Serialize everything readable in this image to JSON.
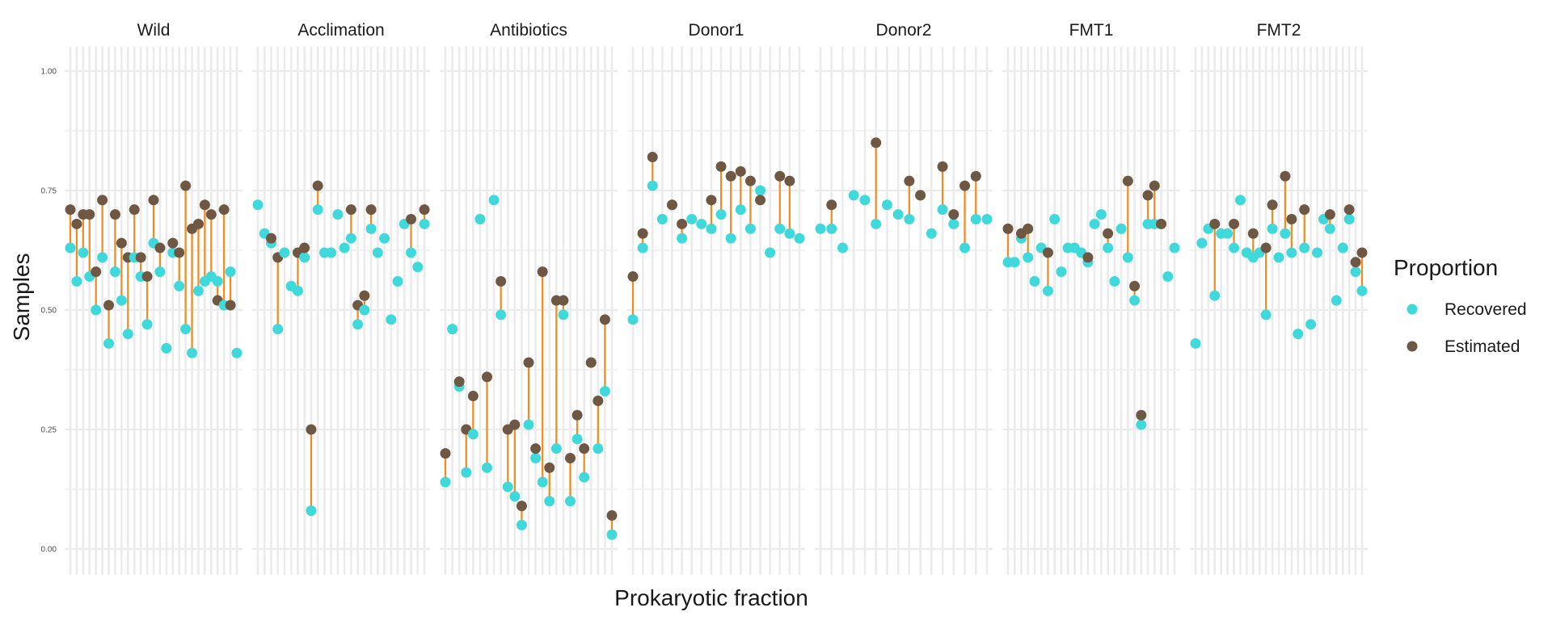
{
  "chart_data": {
    "type": "scatter",
    "xlabel": "Prokaryotic fraction",
    "ylabel": "Samples",
    "ylim": [
      0,
      1.0
    ],
    "y_ticks": [
      0.0,
      0.25,
      0.5,
      0.75,
      1.0
    ],
    "y_tick_labels": [
      "0.00",
      "0.25",
      "0.50",
      "0.75",
      "1.00"
    ],
    "grid": true,
    "legend": {
      "title": "Proportion",
      "position": "right",
      "entries": [
        {
          "label": "Recovered",
          "color": "#40D9DB"
        },
        {
          "label": "Estimated",
          "color": "#6E5843"
        }
      ]
    },
    "segment_color": "#F28C1E",
    "facets": [
      {
        "name": "Wild",
        "recovered": [
          0.63,
          0.56,
          0.62,
          0.57,
          0.5,
          0.61,
          0.43,
          0.58,
          0.52,
          0.45,
          0.61,
          0.57,
          0.47,
          0.64,
          0.58,
          0.42,
          0.62,
          0.55,
          0.46,
          0.41,
          0.54,
          0.56,
          0.57,
          0.56,
          0.51,
          0.58,
          0.41
        ],
        "estimated": [
          0.71,
          0.68,
          0.7,
          0.7,
          0.58,
          0.73,
          0.51,
          0.7,
          0.64,
          0.61,
          0.71,
          0.61,
          0.57,
          0.73,
          0.63,
          null,
          0.64,
          0.62,
          0.76,
          0.67,
          0.68,
          0.72,
          0.7,
          0.52,
          0.71,
          0.51,
          null
        ]
      },
      {
        "name": "Acclimation",
        "recovered": [
          0.72,
          0.66,
          0.64,
          0.46,
          0.62,
          0.55,
          0.54,
          0.61,
          0.08,
          0.71,
          0.62,
          0.62,
          0.7,
          0.63,
          0.65,
          0.47,
          0.5,
          0.67,
          0.62,
          0.65,
          0.48,
          0.56,
          0.68,
          0.62,
          0.59,
          0.68
        ],
        "estimated": [
          null,
          null,
          0.65,
          0.61,
          null,
          null,
          0.62,
          0.63,
          0.25,
          0.76,
          null,
          null,
          null,
          null,
          0.71,
          0.51,
          0.53,
          0.71,
          null,
          null,
          null,
          null,
          null,
          0.69,
          null,
          0.71
        ]
      },
      {
        "name": "Antibiotics",
        "recovered": [
          0.14,
          0.46,
          0.34,
          0.16,
          0.24,
          0.69,
          0.17,
          0.73,
          0.49,
          0.13,
          0.11,
          0.05,
          0.26,
          0.19,
          0.14,
          0.1,
          0.21,
          0.49,
          0.1,
          0.23,
          0.15,
          0.39,
          0.21,
          0.33,
          0.03
        ],
        "estimated": [
          0.2,
          null,
          0.35,
          0.25,
          0.32,
          null,
          0.36,
          null,
          0.56,
          0.25,
          0.26,
          0.09,
          0.39,
          0.21,
          0.58,
          0.17,
          0.52,
          0.52,
          0.19,
          0.28,
          0.21,
          0.39,
          0.31,
          0.48,
          0.07
        ]
      },
      {
        "name": "Donor1",
        "recovered": [
          0.48,
          0.63,
          0.76,
          0.69,
          0.72,
          0.65,
          0.69,
          0.68,
          0.67,
          0.7,
          0.65,
          0.71,
          0.67,
          0.75,
          0.62,
          0.67,
          0.66,
          0.65
        ],
        "estimated": [
          0.57,
          0.66,
          0.82,
          null,
          0.72,
          0.68,
          null,
          null,
          0.73,
          0.8,
          0.78,
          0.79,
          0.77,
          0.73,
          null,
          0.78,
          0.77,
          null
        ]
      },
      {
        "name": "Donor2",
        "recovered": [
          0.67,
          0.67,
          0.63,
          0.74,
          0.73,
          0.68,
          0.72,
          0.7,
          0.69,
          0.74,
          0.66,
          0.71,
          0.68,
          0.63,
          0.69,
          0.69
        ],
        "estimated": [
          null,
          0.72,
          null,
          null,
          null,
          0.85,
          null,
          null,
          0.77,
          0.74,
          null,
          0.8,
          0.7,
          0.76,
          0.78,
          null
        ]
      },
      {
        "name": "FMT1",
        "recovered": [
          0.6,
          0.6,
          0.65,
          0.61,
          0.56,
          0.63,
          0.54,
          0.69,
          0.58,
          0.63,
          0.63,
          0.62,
          0.6,
          0.68,
          0.7,
          0.63,
          0.56,
          0.67,
          0.61,
          0.52,
          0.26,
          0.68,
          0.68,
          0.68,
          0.57,
          0.63
        ],
        "estimated": [
          0.67,
          null,
          0.66,
          0.67,
          null,
          null,
          0.62,
          null,
          null,
          null,
          null,
          null,
          0.61,
          null,
          null,
          0.66,
          null,
          null,
          0.77,
          0.55,
          0.28,
          0.74,
          0.76,
          0.68,
          null,
          null
        ]
      },
      {
        "name": "FMT2",
        "recovered": [
          0.43,
          0.64,
          0.67,
          0.53,
          0.66,
          0.66,
          0.63,
          0.73,
          0.62,
          0.61,
          0.62,
          0.49,
          0.67,
          0.61,
          0.66,
          0.62,
          0.45,
          0.63,
          0.47,
          0.62,
          0.69,
          0.67,
          0.52,
          0.63,
          0.69,
          0.58,
          0.54
        ],
        "estimated": [
          null,
          null,
          null,
          0.68,
          null,
          null,
          0.68,
          null,
          null,
          0.66,
          null,
          0.63,
          0.72,
          null,
          0.78,
          0.69,
          null,
          0.71,
          null,
          null,
          null,
          0.7,
          null,
          null,
          0.71,
          0.6,
          0.62
        ]
      }
    ]
  }
}
